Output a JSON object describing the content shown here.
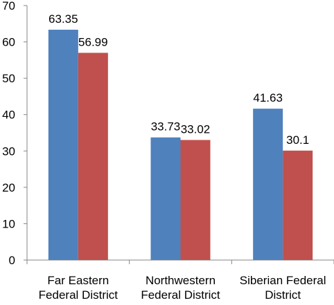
{
  "chart_data": {
    "type": "bar",
    "title": "",
    "xlabel": "",
    "ylabel": "",
    "categories": [
      [
        "Far Eastern",
        "Federal District"
      ],
      [
        "Northwestern",
        "Federal District"
      ],
      [
        "Siberian Federal",
        "District"
      ]
    ],
    "series": [
      {
        "color": "#4F81BD",
        "values": [
          63.35,
          33.73,
          41.63
        ]
      },
      {
        "color": "#C0504D",
        "values": [
          56.99,
          33.02,
          30.1
        ]
      }
    ],
    "ylim": [
      0,
      70
    ],
    "yticks": [
      0,
      10,
      20,
      30,
      40,
      50,
      60,
      70
    ],
    "grid": false,
    "legend": "none"
  }
}
